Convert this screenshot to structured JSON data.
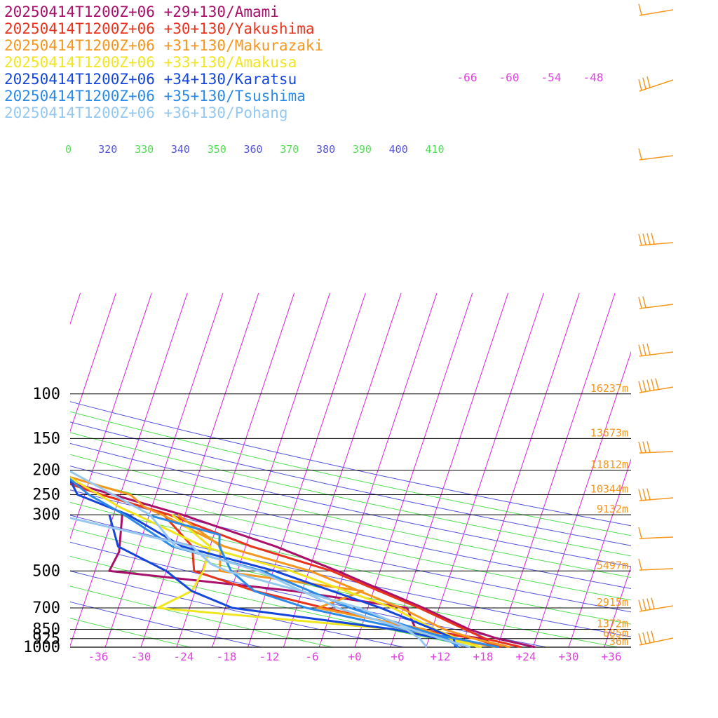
{
  "legend": [
    {
      "label": "20250414T1200Z+06 +29+130/Amami",
      "color": "#a8106a"
    },
    {
      "label": "20250414T1200Z+06 +30+130/Yakushima",
      "color": "#e8341c"
    },
    {
      "label": "20250414T1200Z+06 +31+130/Makurazaki",
      "color": "#f5961e"
    },
    {
      "label": "20250414T1200Z+06 +33+130/Amakusa",
      "color": "#f0e620"
    },
    {
      "label": "20250414T1200Z+06 +34+130/Karatsu",
      "color": "#1446dc"
    },
    {
      "label": "20250414T1200Z+06 +35+130/Tsushima",
      "color": "#2a8ae6"
    },
    {
      "label": "20250414T1200Z+06 +36+130/Pohang",
      "color": "#96c8f0"
    }
  ],
  "chart_data": {
    "type": "line",
    "subtype": "skew-T log-P sounding diagram",
    "pressure_levels": [
      100,
      150,
      200,
      250,
      300,
      500,
      700,
      850,
      925,
      1000
    ],
    "pressure_labels": [
      "100",
      "150",
      "200",
      "250",
      "300",
      "500",
      "700",
      "850",
      "925",
      "1000"
    ],
    "height_labels": [
      "16237m",
      "13673m",
      "11812m",
      "10344m",
      "9132m",
      "5497m",
      "2915m",
      "1372m",
      "685m",
      "36m"
    ],
    "temperature_ticks": [
      "-36",
      "-30",
      "-24",
      "-18",
      "-12",
      "-6",
      "+0",
      "+6",
      "+12",
      "+18",
      "+24",
      "+30",
      "+36"
    ],
    "theta_labels": [
      {
        "text": "0",
        "color": "#55dd55"
      },
      {
        "text": "320",
        "color": "#5555dd"
      },
      {
        "text": "330",
        "color": "#55dd55"
      },
      {
        "text": "340",
        "color": "#5555dd"
      },
      {
        "text": "350",
        "color": "#55dd55"
      },
      {
        "text": "360",
        "color": "#5555dd"
      },
      {
        "text": "370",
        "color": "#55dd55"
      },
      {
        "text": "380",
        "color": "#5555dd"
      },
      {
        "text": "390",
        "color": "#55dd55"
      },
      {
        "text": "400",
        "color": "#5555dd"
      },
      {
        "text": "410",
        "color": "#55dd55"
      }
    ],
    "upper_temperature_labels": [
      "-66",
      "-60",
      "-54",
      "-48"
    ],
    "isotherm_color": "#dd22dd",
    "theta_color_a": "#5555dd",
    "theta_color_b": "#55dd55",
    "height_label_color": "#f5961e",
    "tick_label_color": "#dd44dd",
    "wind_barb_color": "#f5961e",
    "series": [
      {
        "name": "20250414T1200Z+06 +29+130/Amami",
        "color": "#a8106a",
        "temperature": [
          [
            1000,
            25.3
          ],
          [
            925,
            19.6
          ],
          [
            850,
            15.2
          ],
          [
            700,
            7.8
          ],
          [
            500,
            -6.0
          ],
          [
            400,
            -15.8
          ],
          [
            300,
            -30.4
          ],
          [
            250,
            -41.0
          ],
          [
            200,
            -54.2
          ],
          [
            150,
            -61.8
          ],
          [
            100,
            -70.5
          ],
          [
            70,
            -71.2
          ],
          [
            50,
            -66.5
          ]
        ],
        "dewpoint": [
          [
            1000,
            20.0
          ],
          [
            925,
            17.6
          ],
          [
            850,
            7.7
          ],
          [
            700,
            5.5
          ],
          [
            600,
            -11.2
          ],
          [
            500,
            -38.0
          ],
          [
            420,
            -37.5
          ],
          [
            300,
            -38.8
          ]
        ]
      },
      {
        "name": "20250414T1200Z+06 +30+130/Yakushima",
        "color": "#e8341c",
        "temperature": [
          [
            1000,
            23.4
          ],
          [
            925,
            17.9
          ],
          [
            850,
            14.6
          ],
          [
            700,
            7.2
          ],
          [
            500,
            -6.8
          ],
          [
            400,
            -19.2
          ],
          [
            300,
            -32.2
          ],
          [
            250,
            -42.6
          ],
          [
            200,
            -54.0
          ],
          [
            150,
            -62.6
          ],
          [
            100,
            -68.7
          ],
          [
            70,
            -60.3
          ],
          [
            50,
            -66.0
          ]
        ],
        "dewpoint": [
          [
            1000,
            20.5
          ],
          [
            925,
            16.5
          ],
          [
            850,
            8.2
          ],
          [
            700,
            -6.1
          ],
          [
            600,
            -16.6
          ],
          [
            500,
            -26.1
          ],
          [
            400,
            -27.5
          ],
          [
            300,
            -33.0
          ]
        ]
      },
      {
        "name": "20250414T1200Z+06 +31+130/Makurazaki",
        "color": "#f5961e",
        "temperature": [
          [
            1000,
            21.8
          ],
          [
            925,
            16.3
          ],
          [
            850,
            11.7
          ],
          [
            700,
            4.6
          ],
          [
            500,
            -9.8
          ],
          [
            400,
            -23.0
          ],
          [
            300,
            -33.2
          ],
          [
            280,
            -36.0
          ],
          [
            250,
            -38.6
          ],
          [
            200,
            -51.6
          ],
          [
            150,
            -60.8
          ],
          [
            100,
            -66.1
          ],
          [
            70,
            -62.6
          ],
          [
            50,
            -66.0
          ]
        ],
        "dewpoint": [
          [
            1000,
            20.0
          ],
          [
            925,
            12.7
          ],
          [
            850,
            8.9
          ],
          [
            700,
            -7.0
          ],
          [
            600,
            -1.5
          ],
          [
            500,
            -22.5
          ],
          [
            400,
            -23.5
          ],
          [
            300,
            -31.0
          ]
        ]
      },
      {
        "name": "20250414T1200Z+06 +33+130/Amakusa",
        "color": "#f0e620",
        "temperature": [
          [
            1000,
            17.3
          ],
          [
            925,
            14.0
          ],
          [
            850,
            10.4
          ],
          [
            700,
            3.5
          ],
          [
            500,
            -12.5
          ],
          [
            400,
            -26.0
          ],
          [
            300,
            -36.8
          ],
          [
            280,
            -39.5
          ],
          [
            250,
            -43.0
          ],
          [
            200,
            -50.0
          ],
          [
            150,
            -59.5
          ],
          [
            100,
            -64.1
          ],
          [
            70,
            -65.5
          ],
          [
            50,
            -66.0
          ]
        ],
        "dewpoint": [
          [
            1000,
            17.8
          ],
          [
            925,
            12.4
          ],
          [
            850,
            4.8
          ],
          [
            700,
            -29.5
          ],
          [
            600,
            -25.5
          ],
          [
            500,
            -24.8
          ],
          [
            400,
            -25.0
          ],
          [
            300,
            -31.8
          ]
        ]
      },
      {
        "name": "20250414T1200Z+06 +34+130/Karatsu",
        "color": "#1446dc",
        "temperature": [
          [
            1000,
            14.1
          ],
          [
            925,
            13.5
          ],
          [
            850,
            10.2
          ],
          [
            700,
            1.8
          ],
          [
            500,
            -14.8
          ],
          [
            400,
            -28.9
          ],
          [
            300,
            -38.0
          ],
          [
            250,
            -46.0
          ],
          [
            200,
            -48.9
          ],
          [
            150,
            -56.8
          ],
          [
            100,
            -63.1
          ],
          [
            70,
            -61.8
          ],
          [
            50,
            -66.0
          ]
        ],
        "dewpoint": [
          [
            1000,
            16.1
          ],
          [
            925,
            11.6
          ],
          [
            850,
            4.6
          ],
          [
            700,
            -19.0
          ],
          [
            600,
            -25.5
          ],
          [
            500,
            -30.0
          ],
          [
            400,
            -37.9
          ],
          [
            300,
            -40.6
          ]
        ]
      },
      {
        "name": "20250414T1200Z+06 +35+130/Tsushima",
        "color": "#2a8ae6",
        "temperature": [
          [
            1000,
            14.6
          ],
          [
            925,
            12.5
          ],
          [
            850,
            8.0
          ],
          [
            700,
            -2.5
          ],
          [
            500,
            -16.5
          ],
          [
            400,
            -30.3
          ],
          [
            300,
            -38.5
          ],
          [
            250,
            -44.4
          ],
          [
            200,
            -49.7
          ],
          [
            150,
            -56.5
          ],
          [
            100,
            -60.3
          ],
          [
            70,
            -64.0
          ],
          [
            50,
            -66.0
          ]
        ],
        "dewpoint": [
          [
            1000,
            20.2
          ],
          [
            925,
            13.9
          ],
          [
            850,
            6.3
          ],
          [
            700,
            -8.6
          ],
          [
            600,
            -16.7
          ],
          [
            500,
            -20.9
          ],
          [
            400,
            -23.7
          ],
          [
            360,
            -24.2
          ],
          [
            300,
            -35.3
          ]
        ]
      },
      {
        "name": "20250414T1200Z+06 +36+130/Pohang",
        "color": "#96c8f0",
        "temperature": [
          [
            1000,
            10.1
          ],
          [
            925,
            8.7
          ],
          [
            850,
            6.4
          ],
          [
            700,
            -4.2
          ],
          [
            500,
            -17.0
          ],
          [
            400,
            -29.9
          ],
          [
            300,
            -34.9
          ],
          [
            200,
            -48.5
          ],
          [
            150,
            -55.1
          ],
          [
            100,
            -61.0
          ],
          [
            70,
            -63.7
          ],
          [
            50,
            -66.0
          ]
        ],
        "dewpoint": [
          [
            1000,
            16.2
          ],
          [
            925,
            11.7
          ],
          [
            850,
            7.1
          ],
          [
            700,
            -1.2
          ],
          [
            600,
            -10.2
          ],
          [
            500,
            -21.5
          ],
          [
            470,
            -24.0
          ],
          [
            400,
            -27.5
          ],
          [
            300,
            -48.0
          ]
        ]
      }
    ],
    "ylim": [
      1000,
      100
    ],
    "xlim": [
      -36,
      36
    ]
  }
}
